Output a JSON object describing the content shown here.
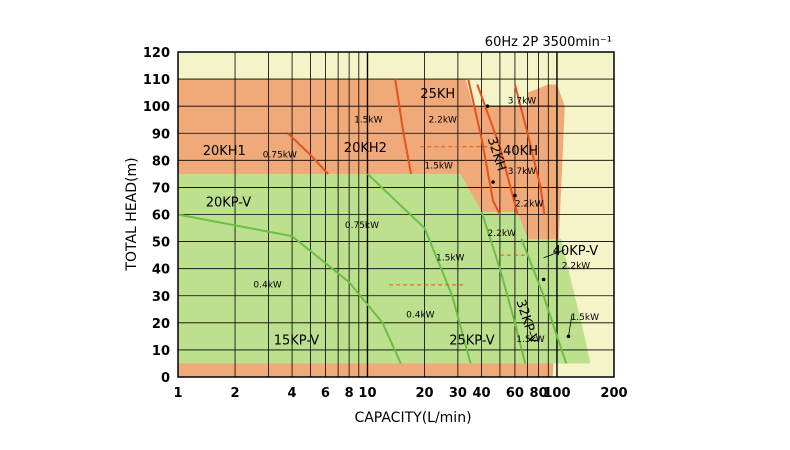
{
  "chart_data": {
    "type": "area",
    "title": "60Hz 2P 3500min⁻¹",
    "xlabel": "CAPACITY(L/min)",
    "ylabel": "TOTAL HEAD(m)",
    "x_scale": "log",
    "xlim": [
      1,
      200
    ],
    "ylim": [
      0,
      120
    ],
    "x_ticks": [
      {
        "value": 1,
        "label": "1"
      },
      {
        "value": 2,
        "label": "2"
      },
      {
        "value": 4,
        "label": "4"
      },
      {
        "value": 6,
        "label": "6"
      },
      {
        "value": 8,
        "label": "8"
      },
      {
        "value": 10,
        "label": "10"
      },
      {
        "value": 20,
        "label": "20"
      },
      {
        "value": 30,
        "label": "30"
      },
      {
        "value": 40,
        "label": "40"
      },
      {
        "value": 60,
        "label": "60"
      },
      {
        "value": 80,
        "label": "80"
      },
      {
        "value": 100,
        "label": "100"
      },
      {
        "value": 200,
        "label": "200"
      }
    ],
    "y_ticks": [
      0,
      10,
      20,
      30,
      40,
      50,
      60,
      70,
      80,
      90,
      100,
      110,
      120
    ],
    "colors": {
      "background": "#f5f3c8",
      "kh_fill": "#f0a979",
      "kh_line": "#e8521e",
      "kp_fill": "#bde08e",
      "kp_line": "#6cbf45",
      "grid": "#000000"
    },
    "regions": [
      {
        "name": "KH",
        "fill_key": "kh_fill",
        "outline": [
          [
            1,
            110
          ],
          [
            33,
            110
          ],
          [
            36,
            100
          ],
          [
            72,
            100
          ],
          [
            70,
            105
          ],
          [
            90,
            108
          ],
          [
            100,
            108
          ],
          [
            110,
            100
          ],
          [
            95,
            0
          ],
          [
            1,
            0
          ]
        ]
      },
      {
        "name": "KP",
        "fill_key": "kp_fill",
        "outline": [
          [
            1,
            75
          ],
          [
            31,
            75
          ],
          [
            40,
            61
          ],
          [
            62,
            61
          ],
          [
            70,
            51
          ],
          [
            105,
            51
          ],
          [
            140,
            15
          ],
          [
            150,
            5
          ],
          [
            1,
            5
          ]
        ]
      }
    ],
    "curves": [
      {
        "series": "20KH1",
        "color_key": "kh_line",
        "points": [
          [
            3.8,
            90
          ],
          [
            5,
            82
          ],
          [
            6.2,
            75
          ]
        ]
      },
      {
        "series": "20KH2",
        "color_key": "kh_line",
        "points": [
          [
            14,
            110
          ],
          [
            15.5,
            90
          ],
          [
            17,
            75
          ]
        ]
      },
      {
        "series": "25KH",
        "color_key": "kh_line",
        "points": [
          [
            34,
            110
          ],
          [
            40,
            88
          ],
          [
            46,
            65
          ],
          [
            50,
            60
          ]
        ]
      },
      {
        "series": "32KH",
        "color_key": "kh_line",
        "points": [
          [
            38,
            108
          ],
          [
            50,
            85
          ],
          [
            62,
            60
          ]
        ]
      },
      {
        "series": "40KH",
        "color_key": "kh_line",
        "points": [
          [
            60,
            108
          ],
          [
            70,
            90
          ],
          [
            82,
            70
          ],
          [
            86,
            60
          ]
        ]
      },
      {
        "series": "15KP-V",
        "color_key": "kp_line",
        "points": [
          [
            1,
            60
          ],
          [
            4,
            52
          ],
          [
            8,
            35
          ],
          [
            12,
            20
          ],
          [
            15,
            5
          ]
        ]
      },
      {
        "series": "20KP-V",
        "color_key": "kp_line",
        "points": [
          [
            10,
            75
          ],
          [
            20,
            55
          ],
          [
            28,
            30
          ],
          [
            35,
            5
          ]
        ]
      },
      {
        "series": "25KP-V",
        "color_key": "kp_line",
        "points": [
          [
            40,
            61
          ],
          [
            50,
            40
          ],
          [
            60,
            20
          ],
          [
            68,
            5
          ]
        ]
      },
      {
        "series": "32KP-V",
        "color_key": "kp_line",
        "points": [
          [
            65,
            51
          ],
          [
            85,
            30
          ],
          [
            100,
            15
          ],
          [
            112,
            5
          ]
        ]
      }
    ],
    "dashed_lines": [
      {
        "points": [
          [
            19,
            85
          ],
          [
            46,
            85
          ]
        ]
      },
      {
        "points": [
          [
            13,
            34
          ],
          [
            33,
            34
          ]
        ]
      },
      {
        "points": [
          [
            50,
            45
          ],
          [
            70,
            45
          ]
        ]
      }
    ],
    "labels": [
      {
        "text": "20KH1",
        "at": [
          1.35,
          82
        ],
        "kind": "model"
      },
      {
        "text": "20KH2",
        "at": [
          7.5,
          83
        ],
        "kind": "model"
      },
      {
        "text": "25KH",
        "at": [
          19,
          103
        ],
        "kind": "model"
      },
      {
        "text": "32KH",
        "at": [
          43,
          88
        ],
        "kind": "model",
        "rotate": 72
      },
      {
        "text": "40KH",
        "at": [
          52,
          82
        ],
        "kind": "model"
      },
      {
        "text": "20KP-V",
        "at": [
          1.4,
          63
        ],
        "kind": "model"
      },
      {
        "text": "40KP-V",
        "at": [
          95,
          45
        ],
        "kind": "model"
      },
      {
        "text": "32KP-V",
        "at": [
          61,
          28
        ],
        "kind": "model",
        "rotate": 72
      },
      {
        "text": "15KP-V",
        "at": [
          3.2,
          12
        ],
        "kind": "model"
      },
      {
        "text": "25KP-V",
        "at": [
          27,
          12
        ],
        "kind": "model"
      },
      {
        "text": "1.5kW",
        "at": [
          8.5,
          94
        ],
        "kind": "power"
      },
      {
        "text": "0.75kW",
        "at": [
          2.8,
          81
        ],
        "kind": "power"
      },
      {
        "text": "2.2kW",
        "at": [
          21,
          94
        ],
        "kind": "power"
      },
      {
        "text": "3.7kW",
        "at": [
          55,
          101
        ],
        "kind": "power"
      },
      {
        "text": "1.5kW",
        "at": [
          20,
          77
        ],
        "kind": "power"
      },
      {
        "text": "3.7kW",
        "at": [
          55,
          75
        ],
        "kind": "power"
      },
      {
        "text": "2.2kW",
        "at": [
          60,
          63
        ],
        "kind": "power"
      },
      {
        "text": "2.2kW",
        "at": [
          43,
          52
        ],
        "kind": "power"
      },
      {
        "text": "0.75kW",
        "at": [
          7.6,
          55
        ],
        "kind": "power"
      },
      {
        "text": "1.5kW",
        "at": [
          23,
          43
        ],
        "kind": "power"
      },
      {
        "text": "2.2kW",
        "at": [
          106,
          40
        ],
        "kind": "power"
      },
      {
        "text": "0.4kW",
        "at": [
          2.5,
          33
        ],
        "kind": "power"
      },
      {
        "text": "0.4kW",
        "at": [
          16,
          22
        ],
        "kind": "power"
      },
      {
        "text": "1.5kW",
        "at": [
          118,
          21
        ],
        "kind": "power"
      },
      {
        "text": "1.5kW",
        "at": [
          61,
          13
        ],
        "kind": "power"
      }
    ],
    "pointers": [
      {
        "from": [
          95,
          100
        ],
        "to": [
          43,
          100
        ]
      },
      {
        "from": [
          110,
          47
        ],
        "to": [
          85,
          44
        ]
      },
      {
        "from": [
          120,
          23
        ],
        "to": [
          115,
          15
        ]
      }
    ],
    "pointer_dots": [
      [
        43,
        100
      ],
      [
        46,
        72
      ],
      [
        60,
        67
      ],
      [
        85,
        36
      ],
      [
        115,
        15
      ]
    ]
  }
}
